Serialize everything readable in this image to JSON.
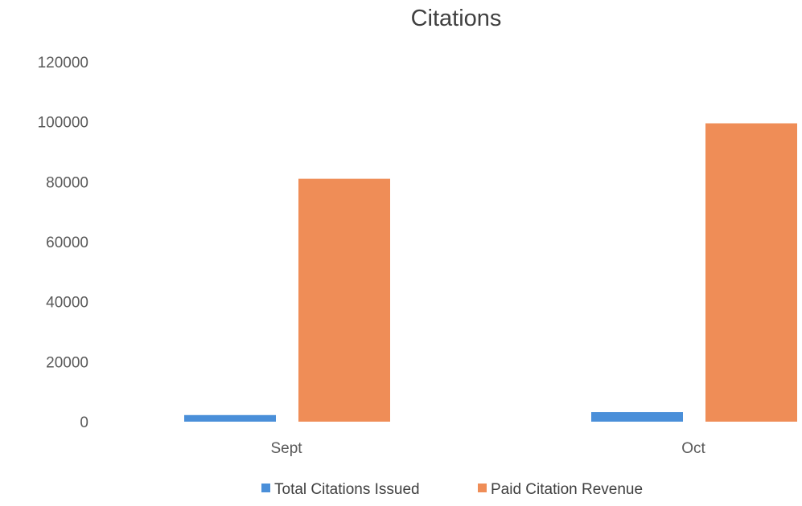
{
  "chart_data": {
    "type": "bar",
    "title": "Citations",
    "xlabel": "",
    "ylabel": "",
    "categories": [
      "Sept",
      "Oct"
    ],
    "series": [
      {
        "name": "Total Citations Issued",
        "values": [
          2200,
          3200
        ],
        "color": "#4a8fd9"
      },
      {
        "name": "Paid Citation Revenue",
        "values": [
          81000,
          99500
        ],
        "color": "#ef8d57"
      }
    ],
    "ylim": [
      0,
      120000
    ],
    "yticks": [
      "0",
      "20000",
      "40000",
      "60000",
      "80000",
      "100000",
      "120000"
    ],
    "ytick_values": [
      0,
      20000,
      40000,
      60000,
      80000,
      100000,
      120000
    ],
    "grid": false,
    "legend_position": "bottom"
  }
}
